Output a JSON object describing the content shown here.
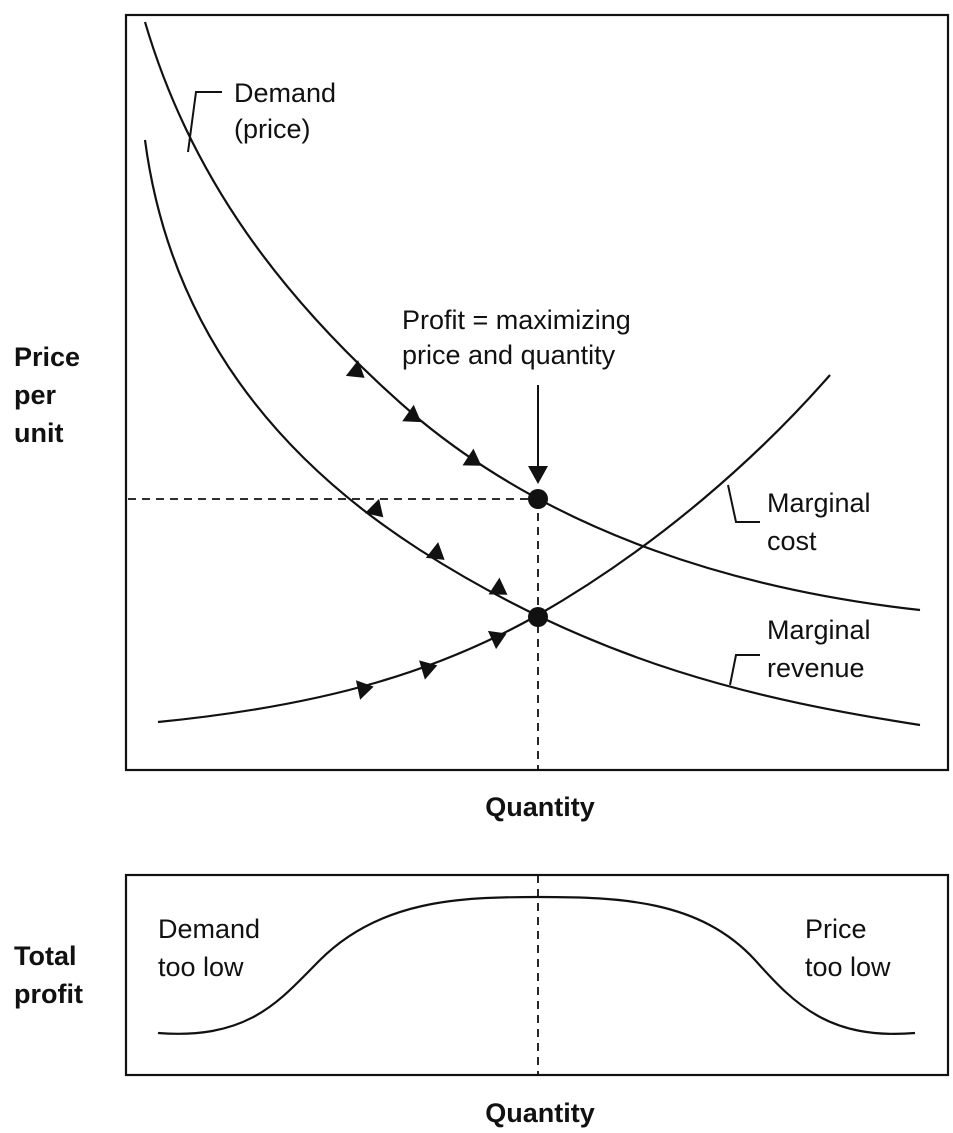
{
  "top_panel": {
    "y_label": [
      "Price",
      "per",
      "unit"
    ],
    "x_label": "Quantity",
    "curves": {
      "demand": [
        "Demand",
        "(price)"
      ],
      "marginal_cost": [
        "Marginal",
        "cost"
      ],
      "marginal_revenue": [
        "Marginal",
        "revenue"
      ]
    },
    "annotation": [
      "Profit = maximizing",
      "price and quantity"
    ]
  },
  "bottom_panel": {
    "y_label": [
      "Total",
      "profit"
    ],
    "x_label": "Quantity",
    "left_note": [
      "Demand",
      "too low"
    ],
    "right_note": [
      "Price",
      "too low"
    ]
  },
  "colors": {
    "ink": "#111111",
    "background": "#ffffff"
  }
}
